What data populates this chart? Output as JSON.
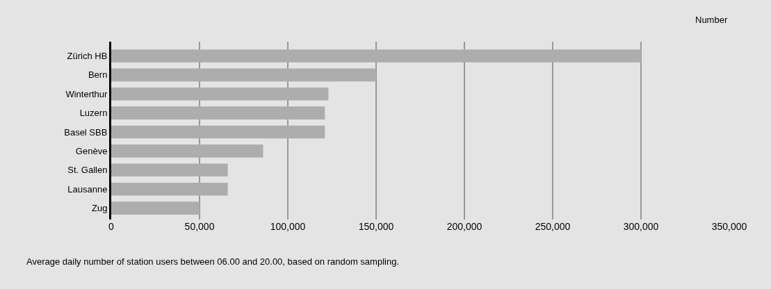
{
  "chart_data": {
    "type": "bar",
    "orientation": "horizontal",
    "xlabel": "Number",
    "categories": [
      "Zürich HB",
      "Bern",
      "Winterthur",
      "Luzern",
      "Basel SBB",
      "Genève",
      "St. Gallen",
      "Lausanne",
      "Zug"
    ],
    "values": [
      300000,
      150000,
      123000,
      121000,
      121000,
      86000,
      66000,
      66000,
      50000
    ],
    "color": "#adadae",
    "xlim": [
      0,
      350000
    ],
    "xticks": [
      0,
      {
        "value": 50000,
        "label": "50,000"
      },
      {
        "value": 100000,
        "label": "100,000"
      },
      {
        "value": 150000,
        "label": "150,000"
      },
      {
        "value": 200000,
        "label": "200,000"
      },
      {
        "value": 250000,
        "label": "250,000"
      },
      {
        "value": 300000,
        "label": "300,000"
      },
      {
        "value": 350000,
        "label": "350,000"
      }
    ],
    "grid": "x",
    "annotations": [
      "Average daily number of station users between 06.00 and 20.00, based on random sampling."
    ]
  }
}
